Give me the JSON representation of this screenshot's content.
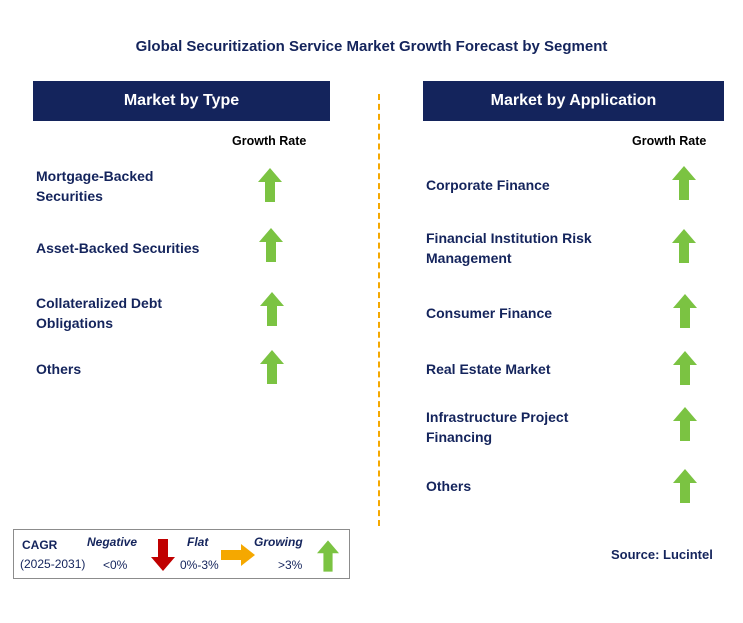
{
  "title": "Global Securitization Service Market Growth Forecast by Segment",
  "left_panel": {
    "header": "Market by Type",
    "growth_rate_label": "Growth Rate",
    "items": [
      {
        "label": "Mortgage-Backed Securities",
        "trend": "growing"
      },
      {
        "label": "Asset-Backed Securities",
        "trend": "growing"
      },
      {
        "label": "Collateralized Debt Obligations",
        "trend": "growing"
      },
      {
        "label": "Others",
        "trend": "growing"
      }
    ]
  },
  "right_panel": {
    "header": "Market by Application",
    "growth_rate_label": "Growth Rate",
    "items": [
      {
        "label": "Corporate Finance",
        "trend": "growing"
      },
      {
        "label": "Financial Institution Risk Management",
        "trend": "growing"
      },
      {
        "label": "Consumer Finance",
        "trend": "growing"
      },
      {
        "label": "Real Estate Market",
        "trend": "growing"
      },
      {
        "label": "Infrastructure Project Financing",
        "trend": "growing"
      },
      {
        "label": "Others",
        "trend": "growing"
      }
    ]
  },
  "legend": {
    "cagr_label": "CAGR",
    "period": "(2025-2031)",
    "negative_label": "Negative",
    "negative_range": "<0%",
    "flat_label": "Flat",
    "flat_range": "0%-3%",
    "growing_label": "Growing",
    "growing_range": ">3%"
  },
  "source": "Source: Lucintel",
  "colors": {
    "navy": "#14245c",
    "growing": "#7bc342",
    "negative": "#c00000",
    "flat": "#f5a800",
    "divider": "#f5a800"
  },
  "icons": {
    "growing": "arrow-up-icon",
    "negative": "arrow-down-icon",
    "flat": "arrow-right-icon"
  }
}
